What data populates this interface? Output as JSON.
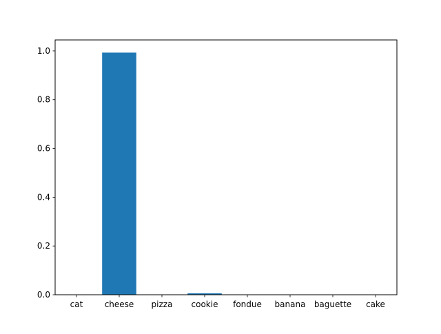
{
  "chart_data": {
    "type": "bar",
    "title": "",
    "xlabel": "",
    "ylabel": "",
    "categories": [
      "cat",
      "cheese",
      "pizza",
      "cookie",
      "fondue",
      "banana",
      "baguette",
      "cake"
    ],
    "values": [
      0.0,
      0.993,
      0.0,
      0.006,
      0.0,
      0.0,
      0.0,
      0.0
    ],
    "ylim": [
      0,
      1.045
    ],
    "yticks": [
      0.0,
      0.2,
      0.4,
      0.6,
      0.8,
      1.0
    ],
    "ytick_labels": [
      "0.0",
      "0.2",
      "0.4",
      "0.6",
      "0.8",
      "1.0"
    ],
    "grid": false,
    "legend": "none",
    "bar_color": "#1f77b4"
  }
}
